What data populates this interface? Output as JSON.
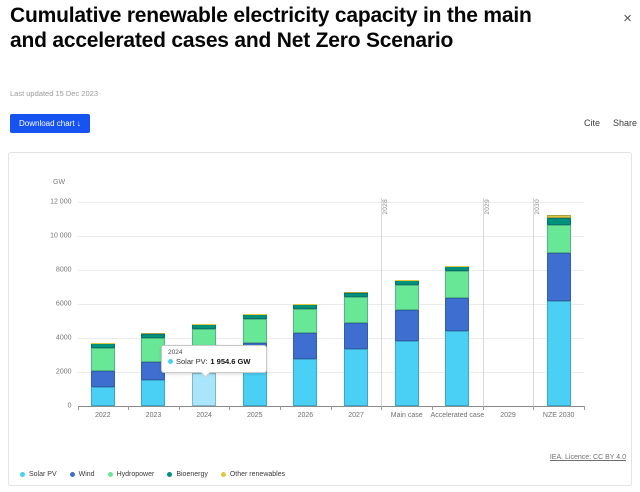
{
  "header": {
    "title": "Cumulative renewable electricity capacity in the main and accelerated cases and Net Zero Scenario",
    "last_updated": "Last updated 15 Dec 2023",
    "download_label": "Download chart ↓",
    "cite_label": "Cite",
    "share_label": "Share",
    "close_icon": "×"
  },
  "chart_data": {
    "type": "bar",
    "stacked": true,
    "title": "Cumulative renewable electricity capacity in the main and accelerated cases and Net Zero Scenario",
    "ylabel": "GW",
    "xlabel": "",
    "ylim": [
      0,
      12000
    ],
    "grid": true,
    "legend_position": "bottom",
    "y_ticks": [
      {
        "value": 0,
        "label": "0"
      },
      {
        "value": 2000,
        "label": "2000"
      },
      {
        "value": 4000,
        "label": "4000"
      },
      {
        "value": 6000,
        "label": "6000"
      },
      {
        "value": 8000,
        "label": "8000"
      },
      {
        "value": 10000,
        "label": "10 000"
      },
      {
        "value": 12000,
        "label": "12 000"
      }
    ],
    "categories": [
      "2022",
      "2023",
      "2024",
      "2025",
      "2026",
      "2027",
      "Main case",
      "Accelerated case",
      "2029",
      "NZE 2030"
    ],
    "series": [
      {
        "name": "Solar PV",
        "color": "#4bd0f5",
        "values": [
          1145,
          1550,
          1954.6,
          2120,
          2765,
          3375,
          3845,
          4390,
          null,
          6150
        ]
      },
      {
        "name": "Wind",
        "color": "#3e6fd0",
        "values": [
          900,
          1030,
          1160,
          1560,
          1510,
          1500,
          1780,
          1960,
          null,
          2845
        ]
      },
      {
        "name": "Hydropower",
        "color": "#68e897",
        "values": [
          1390,
          1420,
          1430,
          1440,
          1450,
          1520,
          1510,
          1570,
          null,
          1670
        ]
      },
      {
        "name": "Bioenergy",
        "color": "#00917b",
        "values": [
          250,
          255,
          260,
          265,
          270,
          275,
          280,
          295,
          null,
          390
        ]
      },
      {
        "name": "Other renewables",
        "color": "#ddc93f",
        "values": [
          15,
          15,
          15,
          15,
          15,
          15,
          15,
          20,
          null,
          160
        ]
      }
    ],
    "plot_lines": [
      {
        "label": "2028",
        "boundary_index": 6
      },
      {
        "label": "2029",
        "boundary_index": 8
      },
      {
        "label": "2030",
        "boundary_index": 9
      }
    ],
    "hover": {
      "category_index": 2,
      "series": "Solar PV",
      "hover_color": "#a9e6fb"
    },
    "tooltip": {
      "title": "2024",
      "series_label": "Solar PV:",
      "value": "1 954.6 GW"
    },
    "source": "IEA. Licence: CC BY 4.0"
  }
}
